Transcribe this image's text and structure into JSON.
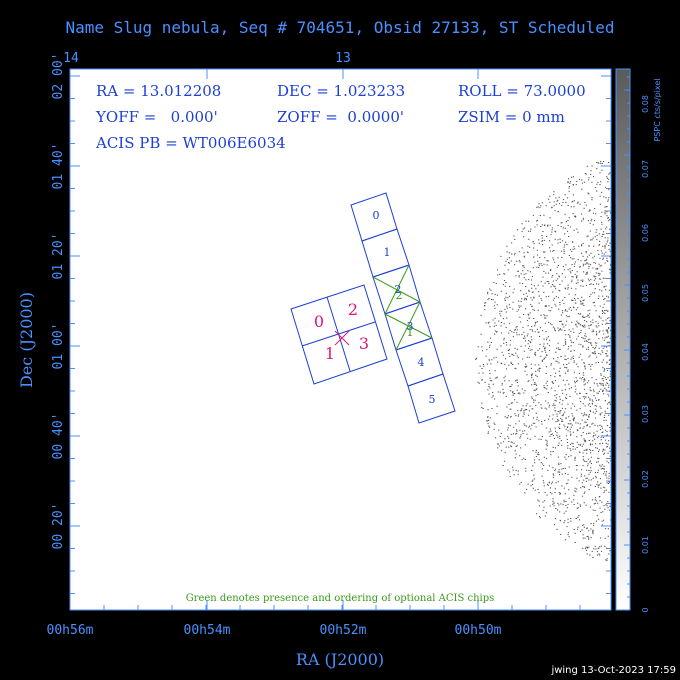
{
  "title": "Name Slug nebula, Seq # 704651, Obsid 27133, ST Scheduled",
  "info": {
    "ra": "RA = 13.012208",
    "dec": "DEC = 1.023233",
    "roll": "ROLL = 73.0000",
    "yoff": "YOFF =   0.000'",
    "zoff": "ZOFF =  0.0000'",
    "zsim": "ZSIM = 0 mm",
    "acis_pb": "ACIS PB = WT006E6034"
  },
  "note": "Green denotes presence and ordering of optional ACIS chips",
  "footer_stamp": "jwing 13-Oct-2023 17:59",
  "colors": {
    "frame_text": "#4a90ff",
    "chip": "#1c3fd6",
    "hrc": "#e0147a",
    "optional": "#3a9a1a"
  },
  "chart_data": {
    "type": "sky-field",
    "xlabel": "RA (J2000)",
    "ylabel": "Dec (J2000)",
    "x_ticks": [
      "00h56m",
      "00h54m",
      "00h52m",
      "00h50m"
    ],
    "x_top_ticks": [
      "14",
      "13"
    ],
    "y_ticks": [
      "02 00'",
      "01 40'",
      "01 20'",
      "01 00'",
      "00 40'",
      "00 20'"
    ],
    "colorbar": {
      "label": "PSPC cts/s/pixel",
      "ticks": [
        "0",
        "0.01",
        "0.02",
        "0.03",
        "0.04",
        "0.05",
        "0.06",
        "0.07",
        "0.08"
      ]
    },
    "acis_chips": [
      "0",
      "1",
      "2",
      "3",
      "4",
      "5"
    ],
    "hrc_quadrants": [
      "0",
      "2",
      "1",
      "3"
    ]
  }
}
